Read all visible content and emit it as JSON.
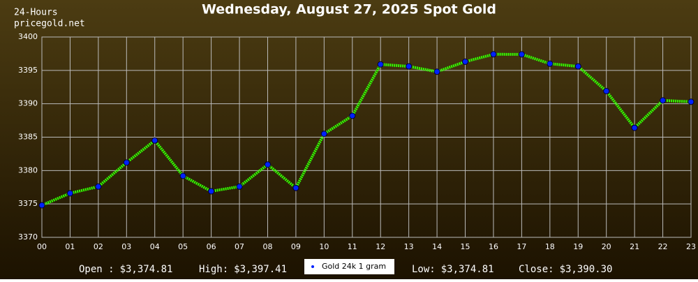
{
  "chart_data": {
    "type": "line",
    "title": "Wednesday, August 27, 2025 Spot Gold",
    "subtitle": [
      "24-Hours",
      "pricegold.net"
    ],
    "categories": [
      "00",
      "01",
      "02",
      "03",
      "04",
      "05",
      "06",
      "07",
      "08",
      "09",
      "10",
      "11",
      "12",
      "13",
      "14",
      "15",
      "16",
      "17",
      "18",
      "19",
      "20",
      "21",
      "22",
      "23"
    ],
    "series": [
      {
        "name": "Gold 24k 1 gram",
        "color": "#33ff00",
        "marker_color": "#0022ff",
        "values": [
          3374.81,
          3376.6,
          3377.6,
          3381.2,
          3384.5,
          3379.2,
          3376.9,
          3377.6,
          3380.9,
          3377.4,
          3385.5,
          3388.2,
          3395.9,
          3395.6,
          3394.8,
          3396.3,
          3397.41,
          3397.4,
          3396.0,
          3395.6,
          3391.9,
          3386.4,
          3390.5,
          3390.3
        ]
      }
    ],
    "ylim": [
      3370,
      3400
    ],
    "yticks": [
      3370,
      3375,
      3380,
      3385,
      3390,
      3395,
      3400
    ],
    "grid": true,
    "stats": [
      {
        "label": "Open :",
        "value": "$3,374.81"
      },
      {
        "label": "High:",
        "value": "$3,397.41"
      },
      {
        "label": "Low:",
        "value": "$3,374.81"
      },
      {
        "label": "Close:",
        "value": "$3,390.30"
      }
    ]
  }
}
